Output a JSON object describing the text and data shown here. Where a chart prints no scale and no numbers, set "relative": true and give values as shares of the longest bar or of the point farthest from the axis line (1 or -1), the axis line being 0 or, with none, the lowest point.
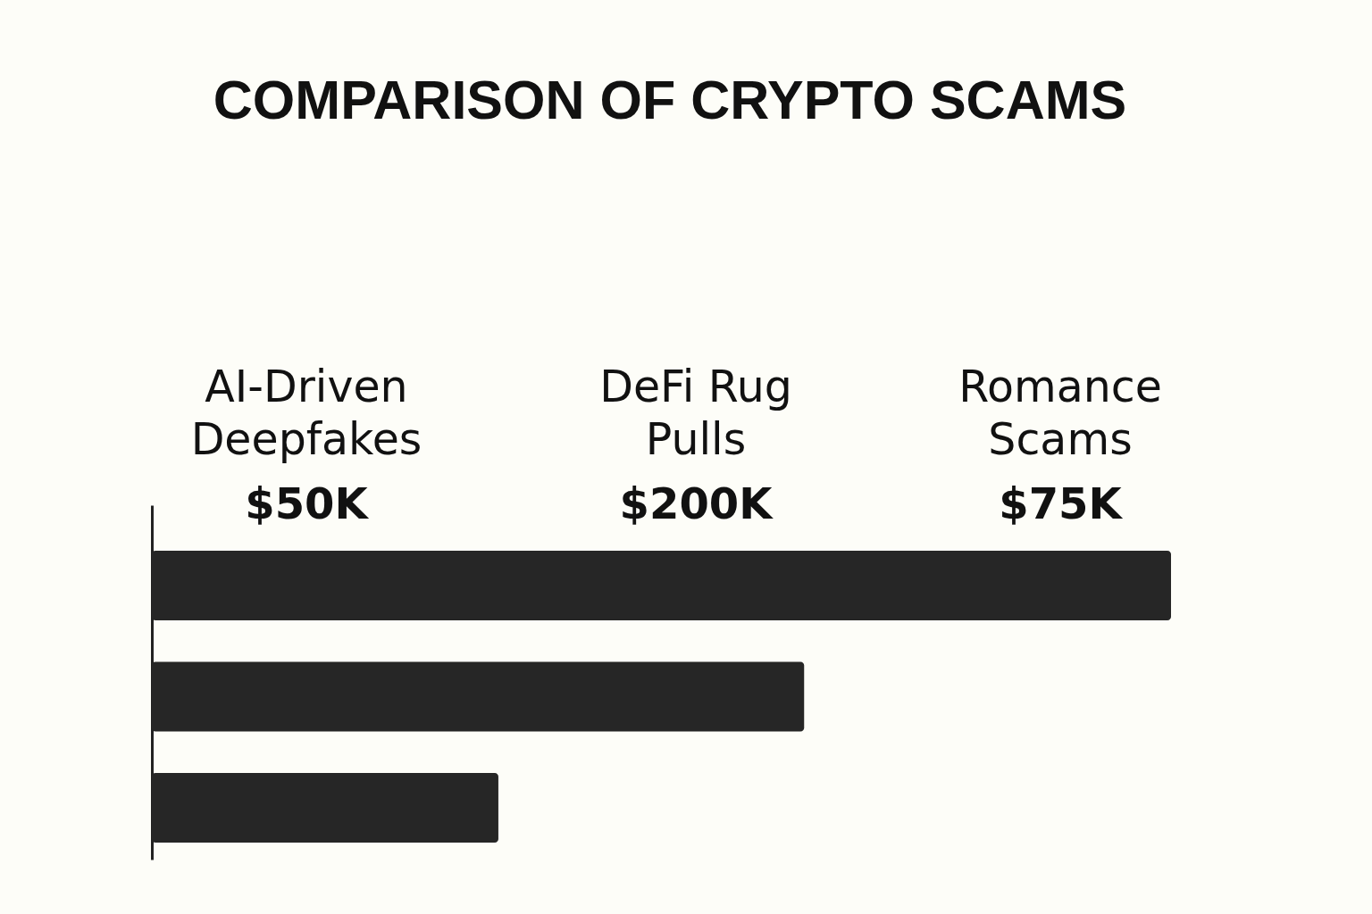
{
  "chart_data": {
    "type": "bar",
    "orientation": "horizontal",
    "relative": true,
    "title": "COMPARISON OF CRYPTO SCAMS",
    "categories": [
      null,
      null,
      null
    ],
    "values": [
      1,
      0.64,
      0.34
    ],
    "color": "#262626",
    "tick_labels": false,
    "annotations": [
      "AI-Driven Deepfakes",
      "$50K",
      "DeFi Rug Pulls",
      "$200K",
      "Romance Scams",
      "$75K"
    ]
  }
}
